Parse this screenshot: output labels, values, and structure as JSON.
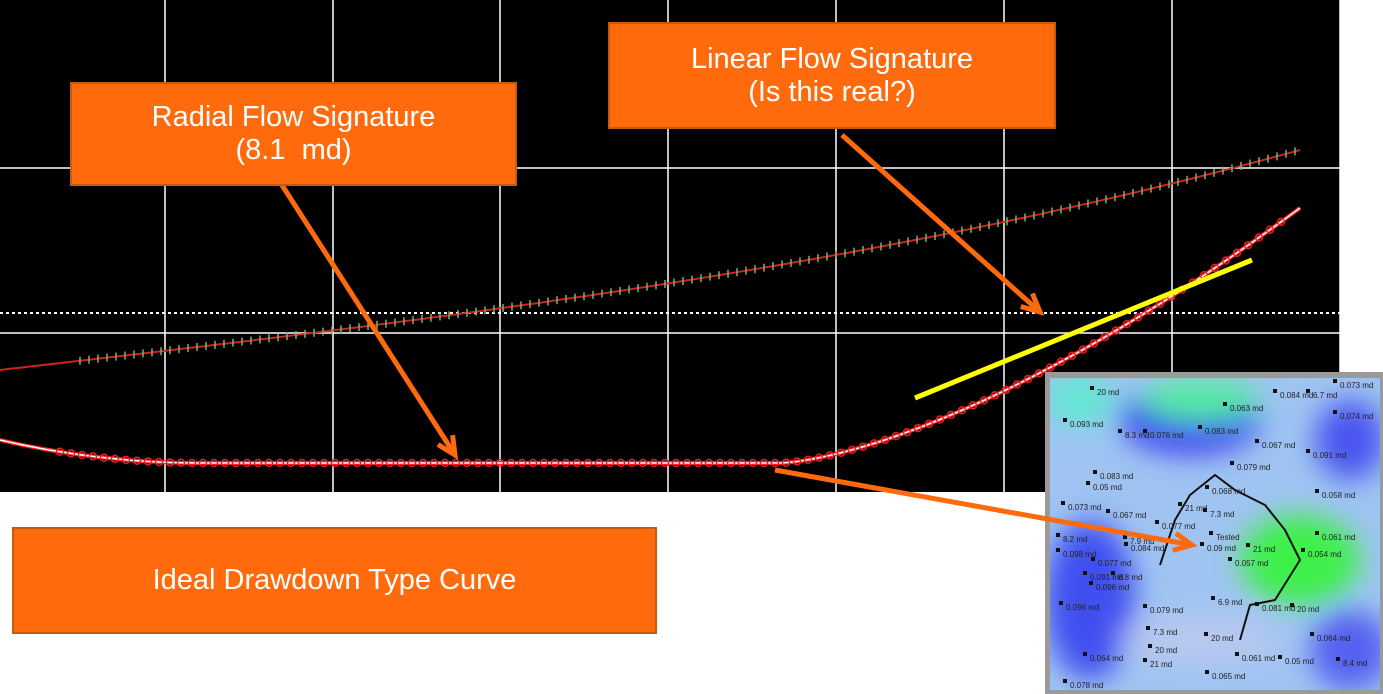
{
  "callouts": [
    {
      "lines": [
        "Radial Flow Signature",
        "(8.1  md)"
      ]
    },
    {
      "lines": [
        "Linear Flow Signature",
        "(Is this real?)"
      ]
    },
    {
      "lines": [
        "Ideal Drawdown Type Curve"
      ]
    }
  ],
  "map": {
    "labels": [
      "20 md",
      "0.084 md",
      "6.7 md",
      "0.073 md",
      "0.063 md",
      "0.074 md",
      "0.093 md",
      "8.3 md",
      "0.076 md",
      "0.083 md",
      "0.091 md",
      "0.067 md",
      "0.079 md",
      "0.083 md",
      "0.05 md",
      "0.068 md",
      "0.058 md",
      "0.073 md",
      "21 md",
      "0.067 md",
      "7.3 md",
      "0.077 md",
      "Tested",
      "0.09 md",
      "21 md",
      "0.061 md",
      "8.2 md",
      "7.9 md",
      "0.084 md",
      "0.054 md",
      "0.098 md",
      "0.077 md",
      "0.057 md",
      "0.091 md",
      "8.8 md",
      "0.096 md",
      "0.096 md",
      "0.079 md",
      "6.9 md",
      "0.081 md",
      "20 md",
      "0.064 md",
      "7.3 md",
      "20 md",
      "0.064 md",
      "20 md",
      "0.061 md",
      "0.05 md",
      "8.4 md",
      "21 md",
      "0.065 md",
      "0.078 md"
    ]
  }
}
